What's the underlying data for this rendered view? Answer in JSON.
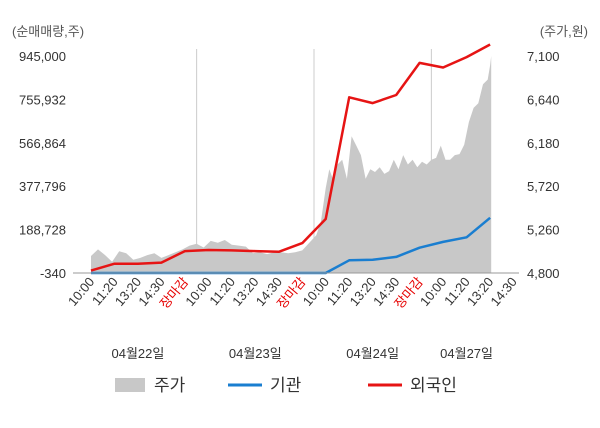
{
  "chart_data": {
    "type": "line",
    "left_unit": "(순매매량,주)",
    "right_unit": "(주가,원)",
    "left_ticks": [
      -340,
      188728,
      377796,
      566864,
      755932,
      945000
    ],
    "left_tick_labels": [
      "-340",
      "188,728",
      "377,796",
      "566,864",
      "755,932",
      "945,000"
    ],
    "right_ticks": [
      4800,
      5260,
      5720,
      6180,
      6640,
      7100
    ],
    "right_tick_labels": [
      "4,800",
      "5,260",
      "5,720",
      "6,180",
      "6,640",
      "7,100"
    ],
    "left_ylim": [
      -340,
      945000
    ],
    "right_ylim": [
      4800,
      7100
    ],
    "x_slots": 19,
    "x_tick_labels": [
      {
        "label": "10:00",
        "color": "#333333"
      },
      {
        "label": "11:20",
        "color": "#333333"
      },
      {
        "label": "13:20",
        "color": "#333333"
      },
      {
        "label": "14:30",
        "color": "#333333"
      },
      {
        "label": "장마감",
        "color": "#e60000"
      },
      {
        "label": "10:00",
        "color": "#333333"
      },
      {
        "label": "11:20",
        "color": "#333333"
      },
      {
        "label": "13:20",
        "color": "#333333"
      },
      {
        "label": "14:30",
        "color": "#333333"
      },
      {
        "label": "장마감",
        "color": "#e60000"
      },
      {
        "label": "10:00",
        "color": "#333333"
      },
      {
        "label": "11:20",
        "color": "#333333"
      },
      {
        "label": "13:20",
        "color": "#333333"
      },
      {
        "label": "14:30",
        "color": "#333333"
      },
      {
        "label": "장마감",
        "color": "#e60000"
      },
      {
        "label": "10:00",
        "color": "#333333"
      },
      {
        "label": "11:20",
        "color": "#333333"
      },
      {
        "label": "13:20",
        "color": "#333333"
      },
      {
        "label": "14:30",
        "color": "#333333"
      }
    ],
    "date_labels": [
      {
        "label": "04월22일",
        "slot": 2
      },
      {
        "label": "04월23일",
        "slot": 7
      },
      {
        "label": "04월24일",
        "slot": 12
      },
      {
        "label": "04월27일",
        "slot": 16
      }
    ],
    "session_separators": [
      5,
      10,
      15
    ],
    "price_series": {
      "name": "주가",
      "color": "#c8c8c8",
      "x": [
        0,
        0.3,
        0.6,
        0.9,
        1.2,
        1.5,
        1.8,
        2.1,
        2.4,
        2.7,
        3.0,
        3.3,
        3.6,
        3.9,
        4.2,
        4.5,
        4.8,
        5.1,
        5.4,
        5.7,
        6.0,
        6.3,
        6.6,
        6.9,
        7.2,
        7.5,
        7.8,
        8.1,
        8.4,
        8.7,
        9.0,
        9.3,
        9.6,
        9.8,
        10.0,
        10.15,
        10.3,
        10.5,
        10.7,
        10.9,
        11.1,
        11.3,
        11.5,
        11.7,
        11.9,
        12.1,
        12.3,
        12.5,
        12.7,
        12.9,
        13.1,
        13.3,
        13.5,
        13.7,
        13.9,
        14.1,
        14.3,
        14.5,
        14.7,
        14.9,
        15.1,
        15.3,
        15.5,
        15.7,
        15.9,
        16.1,
        16.3,
        16.5,
        16.7,
        16.9,
        17.0,
        17.05
      ],
      "values": [
        4980,
        5050,
        4990,
        4920,
        5030,
        5010,
        4940,
        4960,
        4990,
        5010,
        4960,
        4990,
        5020,
        5050,
        5090,
        5110,
        5070,
        5140,
        5120,
        5150,
        5100,
        5090,
        5080,
        5010,
        5020,
        5000,
        5020,
        5020,
        5010,
        5020,
        5040,
        5120,
        5200,
        5350,
        5700,
        5900,
        5800,
        5950,
        6000,
        5800,
        6250,
        6150,
        6050,
        5800,
        5900,
        5870,
        5920,
        5850,
        5880,
        6000,
        5900,
        6050,
        5950,
        6000,
        5920,
        5980,
        5950,
        6000,
        6020,
        6150,
        6000,
        6000,
        6050,
        6060,
        6160,
        6400,
        6550,
        6600,
        6800,
        6850,
        7000,
        7100
      ]
    },
    "series": [
      {
        "name": "기관",
        "color": "#1a7ed0",
        "x": [
          0,
          1,
          2,
          3,
          4,
          5,
          6,
          7,
          8,
          9,
          10,
          11,
          12,
          13,
          14,
          15,
          16,
          17
        ],
        "values": [
          -340,
          -340,
          -340,
          -340,
          -340,
          -340,
          -340,
          -340,
          -340,
          -340,
          -340,
          55000,
          57000,
          70000,
          110000,
          135000,
          155000,
          240000
        ]
      },
      {
        "name": "외국인",
        "color": "#e61414",
        "x": [
          0,
          1,
          2,
          3,
          4,
          5,
          6,
          7,
          8,
          9,
          10,
          11,
          12,
          13,
          14,
          15,
          16,
          17
        ],
        "values": [
          10000,
          40000,
          40000,
          45000,
          95000,
          100000,
          98000,
          95000,
          92000,
          130000,
          235000,
          765000,
          740000,
          775000,
          915000,
          895000,
          940000,
          995000
        ]
      }
    ],
    "legend": [
      {
        "name": "주가",
        "type": "area",
        "color": "#c8c8c8"
      },
      {
        "name": "기관",
        "type": "line",
        "color": "#1a7ed0"
      },
      {
        "name": "외국인",
        "type": "line",
        "color": "#e61414"
      }
    ],
    "legend_position": "bottom",
    "grid": "vertical"
  }
}
